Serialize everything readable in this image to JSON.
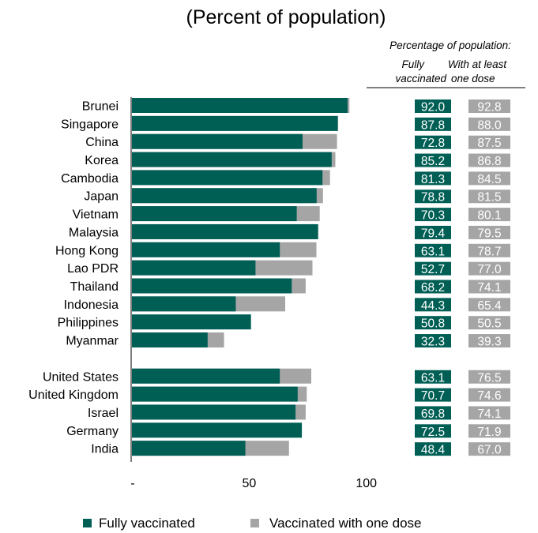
{
  "chart_data": {
    "type": "bar",
    "orientation": "horizontal",
    "title": "(Percent of population)",
    "table_header": {
      "heading": "Percentage of population:",
      "col1": [
        "Fully",
        "vaccinated"
      ],
      "col2": [
        "With at least",
        "one dose"
      ]
    },
    "categories": [
      "Brunei",
      "Singapore",
      "China",
      "Korea",
      "Cambodia",
      "Japan",
      "Vietnam",
      "Malaysia",
      "Hong Kong",
      "Lao PDR",
      "Thailand",
      "Indonesia",
      "Philippines",
      "Myanmar",
      "United States",
      "United Kingdom",
      "Israel",
      "Germany",
      "India"
    ],
    "groups": [
      14,
      5
    ],
    "series": [
      {
        "name": "Fully vaccinated",
        "color": "#005f55",
        "values": [
          92.0,
          87.8,
          72.8,
          85.2,
          81.3,
          78.8,
          70.3,
          79.4,
          63.1,
          52.7,
          68.2,
          44.3,
          50.8,
          32.3,
          63.1,
          70.7,
          69.8,
          72.5,
          48.4
        ]
      },
      {
        "name": "Vaccinated with one dose",
        "color": "#a5a5a5",
        "values": [
          92.8,
          88.0,
          87.5,
          86.8,
          84.5,
          81.5,
          80.1,
          79.5,
          78.7,
          77.0,
          74.1,
          65.4,
          50.5,
          39.3,
          76.5,
          74.6,
          74.1,
          71.9,
          67.0
        ]
      }
    ],
    "xlim": [
      0,
      100
    ],
    "xticks": [
      0,
      50,
      100
    ],
    "xtick_labels": [
      "-",
      "50",
      "100"
    ],
    "legend_position": "bottom",
    "grid": false
  }
}
